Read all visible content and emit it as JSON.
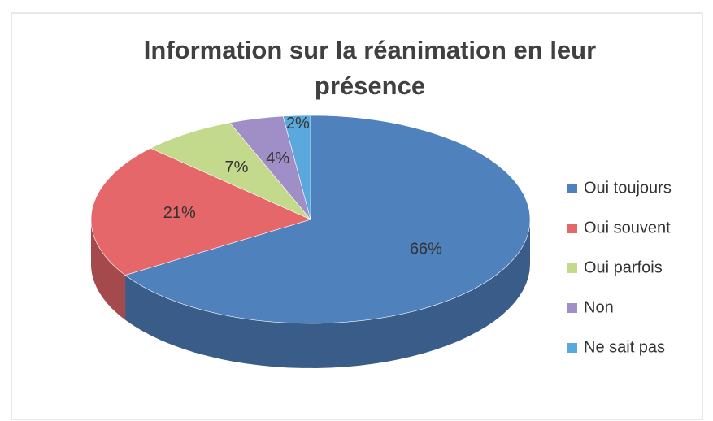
{
  "chart_data": {
    "type": "pie",
    "title": "Information sur la réanimation en leur présence",
    "categories": [
      "Oui toujours",
      "Oui souvent",
      "Oui parfois",
      "Non",
      "Ne sait pas"
    ],
    "values": [
      66,
      21,
      7,
      4,
      2
    ],
    "value_labels": [
      "66%",
      "21%",
      "7%",
      "4%",
      "2%"
    ],
    "colors": [
      "#4f81bd",
      "#e5676a",
      "#c3d98b",
      "#9f8fc6",
      "#5aa8dc"
    ],
    "legend": "right"
  }
}
